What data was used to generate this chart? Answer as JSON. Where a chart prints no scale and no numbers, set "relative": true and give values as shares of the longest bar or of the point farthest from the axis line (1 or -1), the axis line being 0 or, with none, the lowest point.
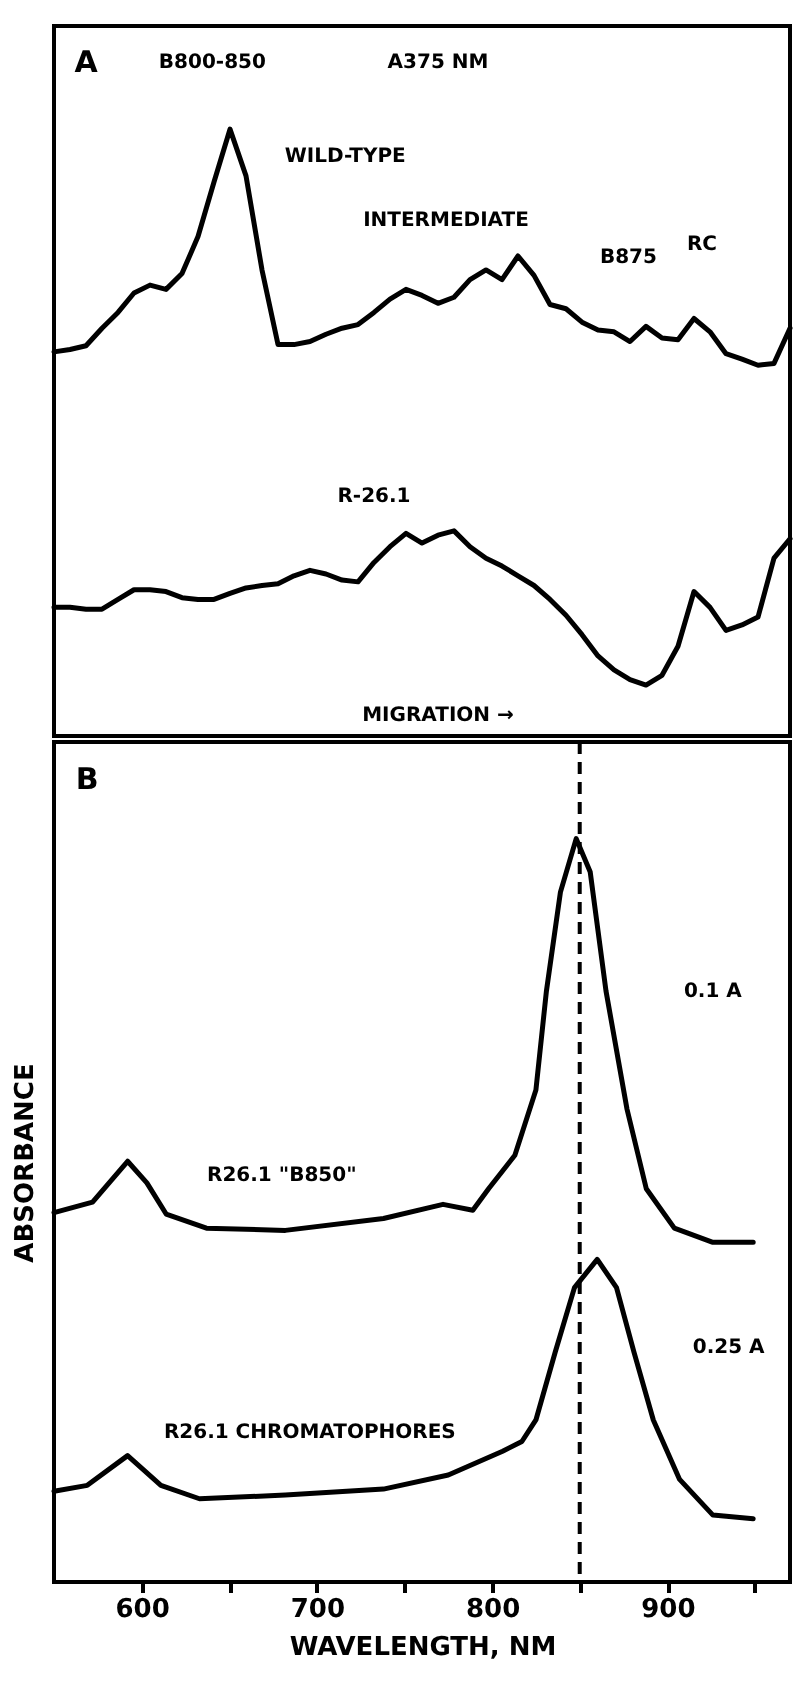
{
  "chart_data": [
    {
      "type": "line",
      "relative": true,
      "tick_labels": false,
      "categories": [
        null,
        null,
        null,
        null,
        null,
        null,
        null,
        null,
        null,
        null,
        null,
        null,
        null,
        null,
        null,
        null,
        null,
        null,
        null,
        null,
        null,
        null,
        null,
        null,
        null,
        null,
        null,
        null,
        null,
        null,
        null,
        null,
        null,
        null,
        null,
        null,
        null,
        null,
        null,
        null,
        null,
        null,
        null,
        null,
        null,
        null,
        null
      ],
      "series": [
        {
          "name": "WILD-TYPE",
          "color": "#000000",
          "values": [
            0.633,
            0.637,
            0.643,
            0.672,
            0.698,
            0.73,
            0.743,
            0.736,
            0.762,
            0.823,
            0.913,
            1.0,
            0.923,
            0.768,
            0.645,
            0.645,
            0.65,
            0.662,
            0.672,
            0.678,
            0.698,
            0.72,
            0.736,
            0.726,
            0.713,
            0.723,
            0.752,
            0.768,
            0.752,
            0.791,
            0.759,
            0.711,
            0.704,
            0.682,
            0.669,
            0.666,
            0.65,
            0.675,
            0.656,
            0.653,
            0.688,
            0.666,
            0.63,
            0.621,
            0.611,
            0.614,
            0.672
          ]
        },
        {
          "name": "R-26.1",
          "color": "#000000",
          "values": [
            0.212,
            0.212,
            0.209,
            0.209,
            0.225,
            0.241,
            0.241,
            0.238,
            0.228,
            0.225,
            0.225,
            0.235,
            0.244,
            0.248,
            0.251,
            0.264,
            0.273,
            0.267,
            0.257,
            0.254,
            0.286,
            0.312,
            0.334,
            0.318,
            0.331,
            0.338,
            0.312,
            0.293,
            0.28,
            0.264,
            0.248,
            0.225,
            0.199,
            0.167,
            0.132,
            0.109,
            0.093,
            0.084,
            0.1,
            0.148,
            0.238,
            0.212,
            0.174,
            0.183,
            0.196,
            0.293,
            0.325
          ]
        }
      ],
      "annotations": [
        "A",
        "B800-850",
        "A375 NM",
        "INTERMEDIATE",
        "B875",
        "RC",
        "MIGRATION →"
      ]
    },
    {
      "type": "line",
      "relative": true,
      "tick_labels": "x",
      "xlabel": "WAVELENGTH, NM",
      "ylabel": "ABSORBANCE",
      "xlim": [
        550,
        970
      ],
      "xticks": [
        600,
        {
          "value": 650,
          "label": null
        },
        700,
        {
          "value": 750,
          "label": null
        },
        800,
        {
          "value": 850,
          "label": null
        },
        900,
        {
          "value": 950,
          "label": null
        }
      ],
      "series": [
        {
          "name": "R26.1 \"B850\"",
          "color": "#000000",
          "x": [
            550,
            572,
            592,
            603,
            614,
            637,
            682,
            738,
            772,
            789,
            798,
            813,
            825,
            831,
            839,
            848,
            856,
            865,
            877,
            888,
            904,
            926,
            949
          ],
          "values": [
            0.497,
            0.511,
            0.566,
            0.537,
            0.495,
            0.476,
            0.473,
            0.489,
            0.508,
            0.5,
            0.529,
            0.574,
            0.662,
            0.795,
            0.928,
            1.0,
            0.955,
            0.795,
            0.636,
            0.529,
            0.476,
            0.457,
            0.457
          ]
        },
        {
          "name": "R26.1 CHROMATOPHORES",
          "color": "#000000",
          "x": [
            550,
            569,
            592,
            611,
            633,
            682,
            738,
            775,
            806,
            817,
            825,
            836,
            847,
            860,
            871,
            881,
            892,
            907,
            926,
            949
          ],
          "values": [
            0.122,
            0.13,
            0.17,
            0.13,
            0.112,
            0.117,
            0.125,
            0.144,
            0.176,
            0.189,
            0.218,
            0.309,
            0.396,
            0.434,
            0.396,
            0.309,
            0.218,
            0.138,
            0.09,
            0.085
          ]
        }
      ],
      "ref_lines": [
        {
          "axis": "x",
          "value": 850,
          "line_style": "dashed"
        }
      ],
      "annotations": [
        "B",
        "0.1 A",
        "0.25 A"
      ]
    }
  ]
}
